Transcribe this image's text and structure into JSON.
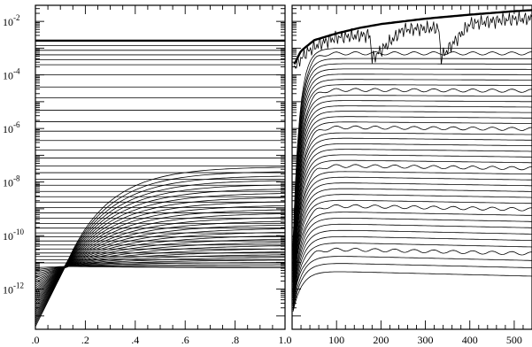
{
  "chart_data": [
    {
      "type": "line",
      "panel": "left",
      "title": "",
      "xlabel": "",
      "ylabel": "",
      "yscale": "log",
      "xlim": [
        0,
        1
      ],
      "ylim_exponent": [
        -13.5,
        -1.4
      ],
      "x_ticks": [
        0.0,
        0.2,
        0.4,
        0.6,
        0.8,
        1.0
      ],
      "x_tick_labels": [
        ".0",
        ".2",
        ".4",
        ".6",
        ".8",
        "1.0"
      ],
      "y_tick_labels": [
        {
          "base": "10",
          "exp": "-2",
          "value_exponent": -2
        },
        {
          "base": "10",
          "exp": "-4",
          "value_exponent": -4
        },
        {
          "base": "10",
          "exp": "-6",
          "value_exponent": -6
        },
        {
          "base": "10",
          "exp": "-8",
          "value_exponent": -8
        },
        {
          "base": "10",
          "exp": "-10",
          "value_exponent": -10
        },
        {
          "base": "10",
          "exp": "-12",
          "value_exponent": -12
        }
      ],
      "flat_series_log10": [
        -2.72,
        -2.9,
        -3.08,
        -3.25,
        -3.43,
        -3.62,
        -4.0,
        -4.45,
        -4.85,
        -5.32,
        -5.75,
        -6.1,
        -6.45,
        -6.8,
        -7.1,
        -7.4,
        -7.65,
        -7.9,
        -8.12,
        -8.35,
        -8.55,
        -8.75,
        -8.95,
        -9.15,
        -9.35,
        -9.55,
        -9.72,
        -9.9,
        -10.05,
        -10.2,
        -10.35,
        -10.5,
        -10.65,
        -10.78,
        -10.9,
        -11.02
      ],
      "bold_series_log10": [
        -2.72,
        -3.95
      ],
      "rising_series": {
        "x": [
          0.0,
          0.05,
          0.1,
          0.15,
          0.2,
          0.3,
          0.5,
          0.75,
          1.0
        ],
        "start_log10_range": [
          -13.4,
          -11.2
        ],
        "end_log10_range": [
          -11.2,
          -7.45
        ],
        "count": 30
      }
    },
    {
      "type": "line",
      "panel": "right",
      "title": "",
      "xlabel": "",
      "ylabel": "",
      "yscale": "log",
      "xlim": [
        0,
        540
      ],
      "ylim_exponent": [
        -13.5,
        -1.4
      ],
      "x_ticks": [
        100,
        200,
        300,
        400,
        500
      ],
      "x_tick_labels": [
        "100",
        "200",
        "300",
        "400",
        "500"
      ],
      "envelope_series_log10": {
        "x": [
          5,
          20,
          50,
          100,
          150,
          200,
          300,
          400,
          500,
          540
        ],
        "y": [
          -3.6,
          -3.1,
          -2.7,
          -2.45,
          -2.25,
          -2.1,
          -1.9,
          -1.75,
          -1.62,
          -1.58
        ]
      },
      "noisy_series_log10": {
        "x": [
          5,
          30,
          60,
          100,
          175,
          180,
          250,
          330,
          335,
          400,
          470,
          540
        ],
        "y": [
          -3.7,
          -3.2,
          -2.85,
          -2.6,
          -2.5,
          -3.4,
          -2.3,
          -2.25,
          -3.35,
          -2.1,
          -1.95,
          -1.9
        ]
      },
      "saturating_series_count": 40,
      "saturating_series_log10_range": [
        -11.3,
        -3.0
      ]
    }
  ]
}
